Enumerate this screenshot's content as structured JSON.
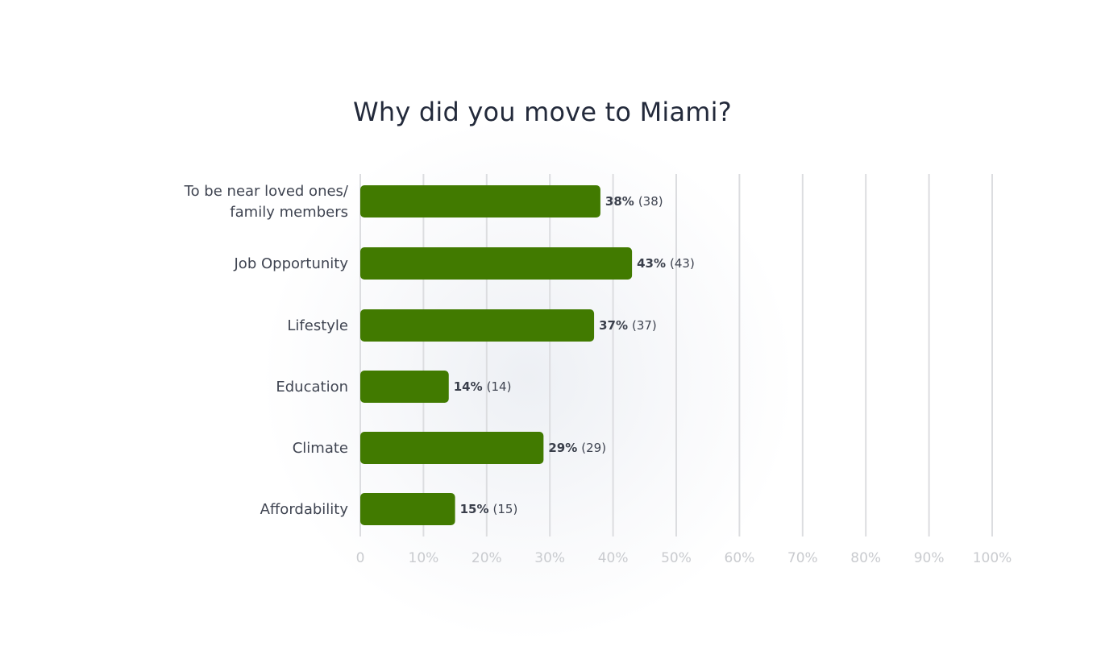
{
  "chart_data": {
    "type": "bar",
    "orientation": "horizontal",
    "title": "Why did you move to Miami?",
    "categories": [
      [
        "To be near loved ones/",
        "family members"
      ],
      [
        "Job Opportunity"
      ],
      [
        "Lifestyle"
      ],
      [
        "Education"
      ],
      [
        "Climate"
      ],
      [
        "Affordability"
      ]
    ],
    "values": [
      38,
      43,
      37,
      14,
      29,
      15
    ],
    "counts": [
      38,
      43,
      37,
      14,
      29,
      15
    ],
    "value_labels": [
      "38%",
      "43%",
      "37%",
      "14%",
      "29%",
      "15%"
    ],
    "count_labels": [
      "(38)",
      "(43)",
      "(37)",
      "(14)",
      "(29)",
      "(15)"
    ],
    "xticks": [
      "0",
      "10%",
      "20%",
      "30%",
      "40%",
      "50%",
      "60%",
      "70%",
      "80%",
      "90%",
      "100%"
    ],
    "xlim": [
      0,
      100
    ],
    "grid": true,
    "bar_color": "#417a00"
  }
}
